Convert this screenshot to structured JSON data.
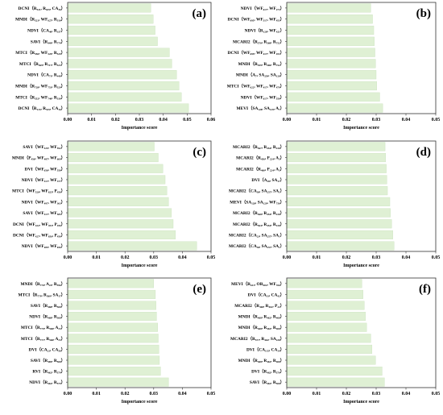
{
  "panels": [
    {
      "id": "a",
      "label": "(a)",
      "xlabel": "Importance score",
      "xticks": [
        "0.00",
        "0.01",
        "0.02",
        "0.03",
        "0.04",
        "0.05",
        "0.06"
      ],
      "xlim": [
        0,
        0.06
      ],
      "categories": [
        "DCNI（R₅₂₁, R₆₃₅, CA₃₆）",
        "MNDI（R₅₂₁, WF₆₂₇, R₅₁₀）",
        "NDVI（CA₄₀, R₃₃₇）",
        "SAVI（R₄₄₉, R₇₇₉）",
        "MTCI（R₅₅₆, WF₅₂₅, R₅₂₉）",
        "MTCI（R₅₆₉, R₇₁₇, R₅₂₃）",
        "NDVI（CA₇₁, R₄₄₀）",
        "MNDI（R₇₂₈, WF₇₅₁, R₅₂₉）",
        "MTCI（R₅₅₂, WF₇₄₀, R₅₃₀）",
        "DCNI（R₁₁₅, R₅₃₅, CA₁₆）"
      ],
      "values": [
        0.0348,
        0.0358,
        0.0366,
        0.0376,
        0.0426,
        0.0436,
        0.0456,
        0.0466,
        0.0476,
        0.0506
      ]
    },
    {
      "id": "b",
      "label": "(b)",
      "xlabel": "Importance score",
      "xticks": [
        "0.00",
        "0.01",
        "0.02",
        "0.03",
        "0.04",
        "0.05"
      ],
      "xlim": [
        0,
        0.05
      ],
      "categories": [
        "NDVI（WF₆₁₇, WF₂₇₃）",
        "DCNI（WF₆₉₅, WF₅₁₇, WF₄₅₃）",
        "NDVI（R₁₂₈, WF₄₂₁）",
        "MCARI2（R₅₇₀, R₅₆₈, R₇₅₂）",
        "DCNI（WF₆₉₅, WF₄₁₇, WF₄₅₃）",
        "MNDI（R₅₅₉, R₅₀₆, R₇₅₂）",
        "MNDI（A₇, SA₂₅₉, SA₁₂₈）",
        "MTCI（WF₆₂₂, WF₄₁₇, WF₄₇₉）",
        "NDVI（WF₆₁₇, WF₅₅₀）",
        "MEVI（SA₁₂₈, SA₁₂₉, A₇）"
      ],
      "values": [
        0.0282,
        0.0288,
        0.0292,
        0.0294,
        0.0296,
        0.0298,
        0.03,
        0.0302,
        0.0312,
        0.0322
      ]
    },
    {
      "id": "c",
      "label": "(c)",
      "xlabel": "Importance score",
      "xticks": [
        "0.00",
        "0.01",
        "0.02",
        "0.03",
        "0.04",
        "0.05"
      ],
      "xlim": [
        0,
        0.05
      ],
      "categories": [
        "SAVI（WF₅₂₅, WF₅₉₂）",
        "MNDI（P₄₅₆, WF₄₈₇, WF₆₆₉）",
        "DVI（WF₆₅₆, WF₅₅₀）",
        "NDVI（WF₅₁₇, WF₃₇₇）",
        "MTCI（WF₅₂₀, WF₆₂₅, P₄₅₆）",
        "NDVI（WF₄₉₇, WF₃₆₃）",
        "SAVI（WF₅₁₇, WF₅₈₅）",
        "DCNI（WF₄₂₂, WF₄₅₃, P₄₅₆）",
        "DCNI（WF₄₂₇, WF₆₅₆, P₄₅₆）",
        "NDVI（WF₄₈₅, WF₆₅₆）"
      ],
      "values": [
        0.0302,
        0.0316,
        0.0332,
        0.034,
        0.0346,
        0.0352,
        0.0362,
        0.0368,
        0.0376,
        0.045
      ]
    },
    {
      "id": "d",
      "label": "(d)",
      "xlabel": "Importance score",
      "xticks": [
        "0.00",
        "0.01",
        "0.02",
        "0.03",
        "0.04",
        "0.05"
      ],
      "xlim": [
        0,
        0.05
      ],
      "categories": [
        "MCARI2（R₅₆₇, R₄₅₄, R₄₁₈）",
        "MCARI2（R₄₅₆, P₂₂₄, A₃）",
        "MCARI2（R₄₆₀, P₂₂₄, A₃）",
        "DVI（A₃₈, SA₁₇）",
        "MCARI2（CA₃₈, SA₂₅₇, SA₁）",
        "MEVI（SA₁₂₈, SA₁₂₉, WF₇₅₆）",
        "MCARI2（R₅₆₈, R₄₅₄, R₄₁₈）",
        "MCARI2（R₅₆₄, R₄₅₄, R₄₁₈）",
        "MCARI2（CA₂₃, SA₂₅₇, SA₁）",
        "MCARI2（CA₃₈, SA₂₅₇, SA₁）"
      ],
      "values": [
        0.033,
        0.0332,
        0.0334,
        0.0336,
        0.0338,
        0.0346,
        0.0348,
        0.0352,
        0.0356,
        0.036
      ]
    },
    {
      "id": "e",
      "label": "(e)",
      "xlabel": "Importance score",
      "xticks": [
        "0.00",
        "0.01",
        "0.02",
        "0.03",
        "0.04",
        "0.05"
      ],
      "xlim": [
        0,
        0.05
      ],
      "categories": [
        "MNDI（R₇₇₀, A₂₃, R₅₉₆）",
        "MTCI（R₇₇₉, R₅₆₀, SA₁₇）",
        "SAVI（R₄₆₈, R₅₆₈）",
        "NDVI（R₄₆₈, R₅₆₈）",
        "MTCI（R₇₇₉, R₅₆₀, A₂₃）",
        "MTCI（R₇₇₇, R₅₆₀, A₂₃）",
        "DVI（CA₂₃, CA₅₆）",
        "SAVI（R₄₆₉, R₅₆₈）",
        "RVI（R₄₆₂, R₅₇₉）",
        "NDVI（R₄₆₂, R₅₇₉）"
      ],
      "values": [
        0.03,
        0.0306,
        0.0308,
        0.031,
        0.0314,
        0.0316,
        0.0318,
        0.032,
        0.0324,
        0.0352
      ]
    },
    {
      "id": "f",
      "label": "(f)",
      "xlabel": "Importance score",
      "xticks": [
        "0.00",
        "0.01",
        "0.02",
        "0.03",
        "0.04",
        "0.05"
      ],
      "xlim": [
        0,
        0.05
      ],
      "categories": [
        "MEVI（R₆₁₁, OR₄₀₂, WF₇₆₆）",
        "DVI（CA₃₃, CA₄₂）",
        "MCARI2（R₄₆₈, R₄₆₂, P₂₂）",
        "MNDI（R₄₆₈, R₄₆₂, R₄₆₈）",
        "MNDI（R₄₆₈, R₄₆₂, R₄₆₈）",
        "MCARI2（R₅₇₇, R₄₆₂, SA₂₂₈）",
        "DVI（CA₁₁₅, CA₁₄）",
        "MNDI（R₄₆₈, R₄₆₂, R₄₆₈）",
        "DVI（R₄₆₂, R₅₇₀）",
        "SAVI（R₄₆₂, R₅₆₈）"
      ],
      "values": [
        0.0252,
        0.0256,
        0.026,
        0.0264,
        0.0268,
        0.0282,
        0.0286,
        0.0298,
        0.032,
        0.0328
      ]
    }
  ],
  "chart_data": [
    {
      "panel": "a",
      "type": "bar",
      "orientation": "horizontal",
      "xlabel": "Importance score",
      "xlim": [
        0,
        0.06
      ],
      "categories": [
        "DCNI（R₅₂₁, R₆₃₅, CA₃₆）",
        "MNDI（R₅₂₁, WF₆₂₇, R₅₁₀）",
        "NDVI（CA₄₀, R₃₃₇）",
        "SAVI（R₄₄₉, R₇₇₉）",
        "MTCI（R₅₅₆, WF₅₂₅, R₅₂₉）",
        "MTCI（R₅₆₉, R₇₁₇, R₅₂₃）",
        "NDVI（CA₇₁, R₄₄₀）",
        "MNDI（R₇₂₈, WF₇₅₁, R₅₂₉）",
        "MTCI（R₅₅₂, WF₇₄₀, R₅₃₀）",
        "DCNI（R₁₁₅, R₅₃₅, CA₁₆）"
      ],
      "values": [
        0.0348,
        0.0358,
        0.0366,
        0.0376,
        0.0426,
        0.0436,
        0.0456,
        0.0466,
        0.0476,
        0.0506
      ]
    },
    {
      "panel": "b",
      "type": "bar",
      "orientation": "horizontal",
      "xlabel": "Importance score",
      "xlim": [
        0,
        0.05
      ],
      "categories": [
        "NDVI（WF₆₁₇, WF₂₇₃）",
        "DCNI（WF₆₉₅, WF₅₁₇, WF₄₅₃）",
        "NDVI（R₁₂₈, WF₄₂₁）",
        "MCARI2（R₅₇₀, R₅₆₈, R₇₅₂）",
        "DCNI（WF₆₉₅, WF₄₁₇, WF₄₅₃）",
        "MNDI（R₅₅₉, R₅₀₆, R₇₅₂）",
        "MNDI（A₇, SA₂₅₉, SA₁₂₈）",
        "MTCI（WF₆₂₂, WF₄₁₇, WF₄₇₉）",
        "NDVI（WF₆₁₇, WF₅₅₀）",
        "MEVI（SA₁₂₈, SA₁₂₉, A₇）"
      ],
      "values": [
        0.0282,
        0.0288,
        0.0292,
        0.0294,
        0.0296,
        0.0298,
        0.03,
        0.0302,
        0.0312,
        0.0322
      ]
    },
    {
      "panel": "c",
      "type": "bar",
      "orientation": "horizontal",
      "xlabel": "Importance score",
      "xlim": [
        0,
        0.05
      ],
      "categories": [
        "SAVI（WF₅₂₅, WF₅₉₂）",
        "MNDI（P₄₅₆, WF₄₈₇, WF₆₆₉）",
        "DVI（WF₆₅₆, WF₅₅₀）",
        "NDVI（WF₅₁₇, WF₃₇₇）",
        "MTCI（WF₅₂₀, WF₆₂₅, P₄₅₆）",
        "NDVI（WF₄₉₇, WF₃₆₃）",
        "SAVI（WF₅₁₇, WF₅₈₅）",
        "DCNI（WF₄₂₂, WF₄₅₃, P₄₅₆）",
        "DCNI（WF₄₂₇, WF₆₅₆, P₄₅₆）",
        "NDVI（WF₄₈₅, WF₆₅₆）"
      ],
      "values": [
        0.0302,
        0.0316,
        0.0332,
        0.034,
        0.0346,
        0.0352,
        0.0362,
        0.0368,
        0.0376,
        0.045
      ]
    },
    {
      "panel": "d",
      "type": "bar",
      "orientation": "horizontal",
      "xlabel": "Importance score",
      "xlim": [
        0,
        0.05
      ],
      "categories": [
        "MCARI2（R₅₆₇, R₄₅₄, R₄₁₈）",
        "MCARI2（R₄₅₆, P₂₂₄, A₃）",
        "MCARI2（R₄₆₀, P₂₂₄, A₃）",
        "DVI（A₃₈, SA₁₇）",
        "MCARI2（CA₃₈, SA₂₅₇, SA₁）",
        "MEVI（SA₁₂₈, SA₁₂₉, WF₇₅₆）",
        "MCARI2（R₅₆₈, R₄₅₄, R₄₁₈）",
        "MCARI2（R₅₆₄, R₄₅₄, R₄₁₈）",
        "MCARI2（CA₂₃, SA₂₅₇, SA₁）",
        "MCARI2（CA₃₈, SA₂₅₇, SA₁）"
      ],
      "values": [
        0.033,
        0.0332,
        0.0334,
        0.0336,
        0.0338,
        0.0346,
        0.0348,
        0.0352,
        0.0356,
        0.036
      ]
    },
    {
      "panel": "e",
      "type": "bar",
      "orientation": "horizontal",
      "xlabel": "Importance score",
      "xlim": [
        0,
        0.05
      ],
      "categories": [
        "MNDI（R₇₇₀, A₂₃, R₅₉₆）",
        "MTCI（R₇₇₉, R₅₆₀, SA₁₇）",
        "SAVI（R₄₆₈, R₅₆₈）",
        "NDVI（R₄₆₈, R₅₆₈）",
        "MTCI（R₇₇₉, R₅₆₀, A₂₃）",
        "MTCI（R₇₇₇, R₅₆₀, A₂₃）",
        "DVI（CA₂₃, CA₅₆）",
        "SAVI（R₄₆₉, R₅₆₈）",
        "RVI（R₄₆₂, R₅₇₉）",
        "NDVI（R₄₆₂, R₅₇₉）"
      ],
      "values": [
        0.03,
        0.0306,
        0.0308,
        0.031,
        0.0314,
        0.0316,
        0.0318,
        0.032,
        0.0324,
        0.0352
      ]
    },
    {
      "panel": "f",
      "type": "bar",
      "orientation": "horizontal",
      "xlabel": "Importance score",
      "xlim": [
        0,
        0.05
      ],
      "categories": [
        "MEVI（R₆₁₁, OR₄₀₂, WF₇₆₆）",
        "DVI（CA₃₃, CA₄₂）",
        "MCARI2（R₄₆₈, R₄₆₂, P₂₂）",
        "MNDI（R₄₆₈, R₄₆₂, R₄₆₈）",
        "MNDI（R₄₆₈, R₄₆₂, R₄₆₈）",
        "MCARI2（R₅₇₇, R₄₆₂, SA₂₂₈）",
        "DVI（CA₁₁₅, CA₁₄）",
        "MNDI（R₄₆₈, R₄₆₂, R₄₆₈）",
        "DVI（R₄₆₂, R₅₇₀）",
        "SAVI（R₄₆₂, R₅₆₈）"
      ],
      "values": [
        0.0252,
        0.0256,
        0.026,
        0.0264,
        0.0268,
        0.0282,
        0.0286,
        0.0298,
        0.032,
        0.0328
      ]
    }
  ]
}
